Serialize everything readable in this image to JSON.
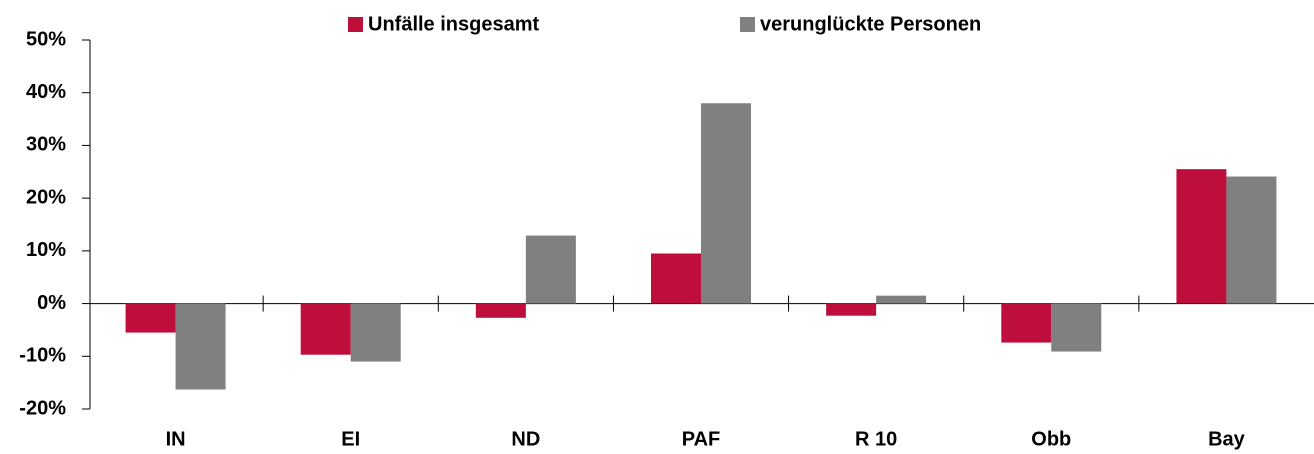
{
  "chart_data": {
    "type": "bar",
    "categories": [
      "IN",
      "EI",
      "ND",
      "PAF",
      "R 10",
      "Obb",
      "Bay"
    ],
    "series": [
      {
        "name": "Unfälle insgesamt",
        "color": "#be0f3c",
        "values": [
          -5.5,
          -9.7,
          -2.7,
          9.5,
          -2.3,
          -7.4,
          25.5
        ]
      },
      {
        "name": "verunglückte Personen",
        "color": "#808080",
        "values": [
          -16.3,
          -11.0,
          12.9,
          38.0,
          1.5,
          -9.1,
          24.1
        ]
      }
    ],
    "ylim": [
      -20,
      50
    ],
    "yticks": [
      {
        "value": -20,
        "label": "-20%"
      },
      {
        "value": -10,
        "label": "-10%"
      },
      {
        "value": 0,
        "label": "0%"
      },
      {
        "value": 10,
        "label": "10%"
      },
      {
        "value": 20,
        "label": "20%"
      },
      {
        "value": 30,
        "label": "30%"
      },
      {
        "value": 40,
        "label": "40%"
      },
      {
        "value": 50,
        "label": "50%"
      }
    ],
    "grid": false,
    "legend": "top"
  }
}
